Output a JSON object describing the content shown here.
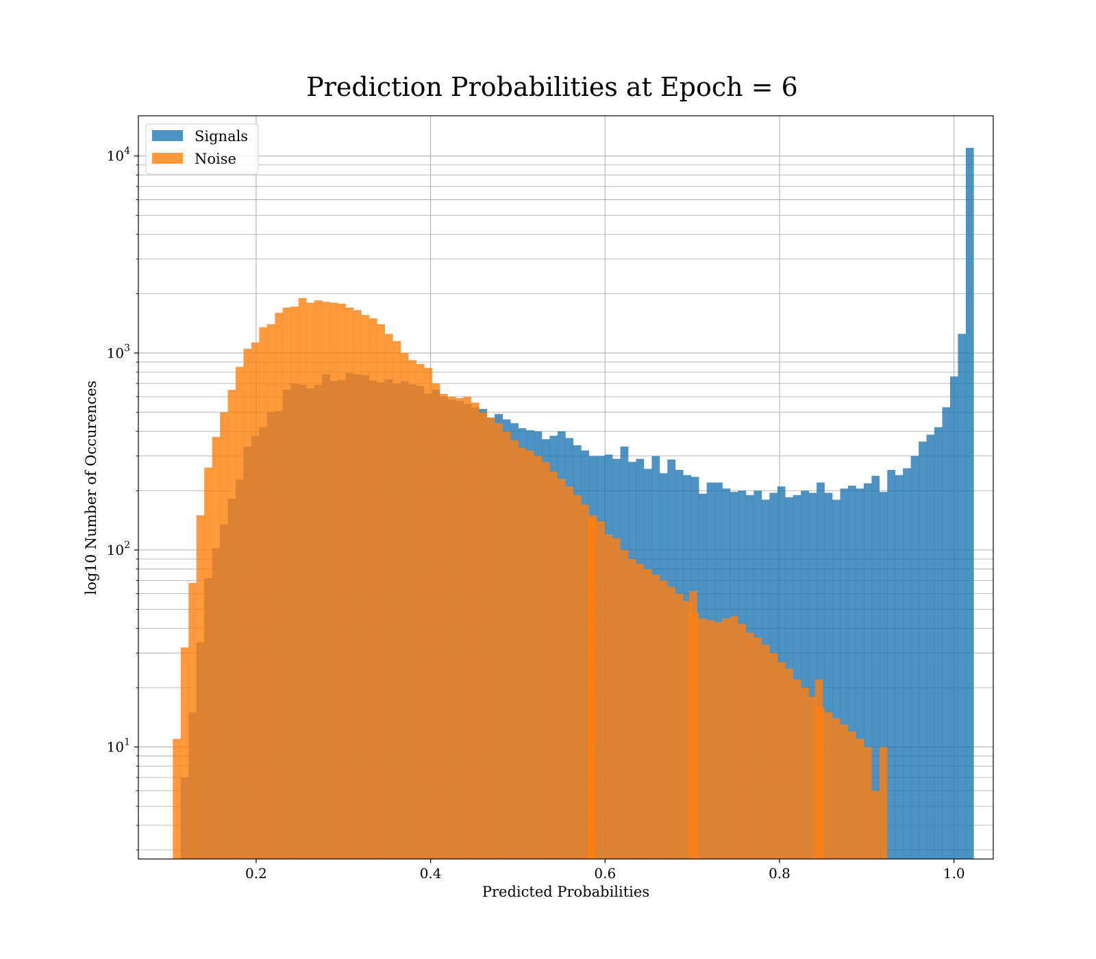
{
  "chart_data": {
    "type": "bar",
    "title": "Prediction Probabilities at Epoch = 6",
    "xlabel": "Predicted Probabilities",
    "ylabel": "log10 Number of Occurences",
    "xlim": [
      0.065,
      1.045
    ],
    "ylim": [
      2.7,
      16000
    ],
    "yscale": "log",
    "grid": true,
    "legend_position": "top-left",
    "x_ticks": [
      0.2,
      0.4,
      0.6,
      0.8,
      1.0
    ],
    "x_tick_labels": [
      "0.2",
      "0.4",
      "0.6",
      "0.8",
      "1.0"
    ],
    "y_ticks": [
      10,
      100,
      1000,
      10000
    ],
    "y_tick_labels": [
      {
        "base": "10",
        "exp": "1"
      },
      {
        "base": "10",
        "exp": "2"
      },
      {
        "base": "10",
        "exp": "3"
      },
      {
        "base": "10",
        "exp": "4"
      }
    ],
    "bin_width": 0.009,
    "series": [
      {
        "name": "Signals",
        "color": "#1f77b4",
        "bins": [
          {
            "x0": 0.1135,
            "values": [
              7,
              15,
              34,
              72,
              102,
              135,
              182,
              228,
              335,
              380,
              420,
              502,
              508,
              650,
              700,
              690,
              660,
              688,
              780,
              720,
              730,
              790,
              780,
              770,
              725,
              710,
              735,
              700,
              720,
              695,
              680,
              620,
              650,
              600,
              580,
              570,
              550,
              528,
              520,
              470,
              490,
              460,
              440,
              415,
              405,
              400,
              365,
              380,
              400,
              370,
              340,
              320,
              300,
              300,
              305,
              290,
              335,
              280,
              290,
              258,
              300,
              245,
              288,
              255,
              240,
              235,
              193,
              220,
              220,
              205,
              197,
              200,
              190,
              200,
              180,
              195,
              210,
              185,
              190,
              200,
              195,
              220,
              195,
              180,
              205,
              212,
              205,
              218,
              238,
              197,
              255,
              240,
              260,
              300,
              355,
              385,
              420,
              530,
              760,
              1250,
              11000
            ]
          }
        ]
      },
      {
        "name": "Noise",
        "color": "#ff7f0e",
        "bins": [
          {
            "x0": 0.1045,
            "values": [
              11,
              32,
              68,
              150,
              262,
              375,
              500,
              650,
              850,
              1050,
              1130,
              1350,
              1400,
              1600,
              1700,
              1720,
              1900,
              1800,
              1850,
              1820,
              1800,
              1780,
              1700,
              1650,
              1560,
              1500,
              1400,
              1250,
              1150,
              1000,
              920,
              880,
              840,
              700,
              620,
              600,
              590,
              600,
              560,
              500,
              470,
              440,
              400,
              360,
              330,
              320,
              300,
              280,
              250,
              230,
              210,
              190,
              170,
              150,
              140,
              120,
              115,
              100,
              90,
              85,
              80,
              75,
              70,
              65,
              60,
              55,
              48,
              45,
              44,
              43,
              45,
              46,
              42,
              38,
              36,
              33,
              30,
              27,
              25,
              22,
              20,
              18,
              16,
              15,
              14,
              13,
              12,
              11,
              10,
              6,
              10
            ]
          },
          {
            "x0": 0.5795,
            "values": [
              145
            ]
          },
          {
            "x0": 0.6965,
            "values": [
              62
            ]
          },
          {
            "x0": 0.8405,
            "values": [
              22
            ]
          }
        ]
      }
    ]
  }
}
